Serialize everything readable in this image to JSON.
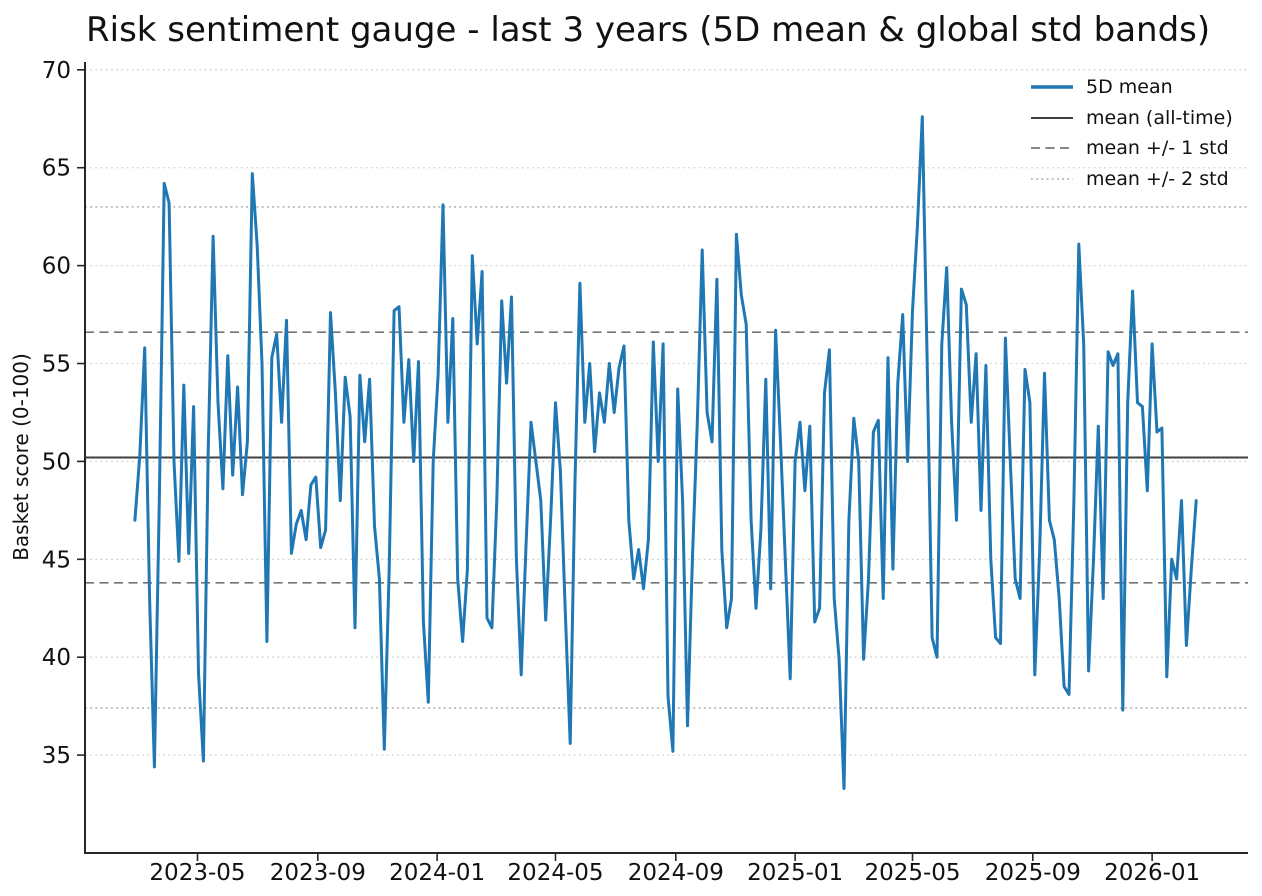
{
  "chart_data": {
    "type": "line",
    "title": "Risk sentiment gauge - last 3 years (5D mean & global std bands)",
    "xlabel": "",
    "ylabel": "Basket score (0-100)",
    "x_tick_labels": [
      "2023-05",
      "2023-09",
      "2024-01",
      "2024-05",
      "2024-09",
      "2025-01",
      "2025-05",
      "2025-09",
      "2026-01"
    ],
    "x_tick_days": [
      64,
      187,
      309,
      430,
      553,
      675,
      795,
      918,
      1040
    ],
    "y_ticks": [
      35,
      40,
      45,
      50,
      55,
      60,
      65,
      70
    ],
    "xlim_days": [
      -51,
      1138
    ],
    "ylim": [
      30,
      70.4
    ],
    "grid": {
      "axis": "y",
      "style": "dotted",
      "color": "#d2d2d2"
    },
    "axis_color": "#262626",
    "tick_label_color": "#111111",
    "series": [
      {
        "name": "5D mean",
        "color": "#1f77b4",
        "linewidth": 3,
        "x_start_day": 0,
        "x_step_days": 5,
        "values": [
          47.0,
          50.3,
          55.8,
          43.0,
          34.4,
          48.0,
          64.2,
          63.2,
          50.0,
          44.9,
          53.9,
          45.3,
          52.8,
          39.2,
          34.7,
          50.5,
          61.5,
          53.0,
          48.6,
          55.4,
          49.3,
          53.8,
          48.3,
          51.0,
          64.7,
          61.0,
          55.0,
          40.8,
          55.3,
          56.5,
          52.0,
          57.2,
          45.3,
          46.8,
          47.5,
          46.0,
          48.8,
          49.2,
          45.6,
          46.5,
          57.6,
          53.5,
          48.0,
          54.3,
          52.3,
          41.5,
          54.4,
          51.0,
          54.2,
          46.7,
          44.0,
          35.3,
          44.5,
          57.7,
          57.9,
          52.0,
          55.2,
          50.0,
          55.1,
          41.8,
          37.7,
          50.0,
          54.4,
          63.1,
          52.0,
          57.3,
          44.0,
          40.8,
          44.5,
          60.5,
          56.0,
          59.7,
          42.0,
          41.5,
          48.0,
          58.2,
          54.0,
          58.4,
          45.0,
          39.1,
          45.8,
          52.0,
          50.0,
          48.0,
          41.9,
          47.0,
          53.0,
          49.5,
          42.3,
          35.6,
          49.0,
          59.1,
          52.0,
          55.0,
          50.5,
          53.5,
          52.0,
          55.0,
          52.5,
          54.8,
          55.9,
          47.0,
          44.0,
          45.5,
          43.5,
          46.0,
          56.1,
          50.0,
          56.0,
          38.0,
          35.2,
          53.7,
          48.0,
          36.5,
          45.0,
          52.0,
          60.8,
          52.5,
          51.0,
          59.3,
          45.5,
          41.5,
          43.0,
          61.6,
          58.5,
          57.0,
          47.0,
          42.5,
          46.5,
          54.2,
          43.5,
          56.7,
          51.0,
          45.0,
          38.9,
          50.0,
          52.0,
          48.5,
          51.8,
          41.8,
          42.5,
          53.5,
          55.7,
          43.0,
          39.9,
          33.3,
          47.0,
          52.2,
          50.0,
          39.9,
          44.0,
          51.5,
          52.1,
          43.0,
          55.3,
          44.5,
          54.0,
          57.5,
          50.0,
          57.7,
          62.0,
          67.6,
          55.0,
          41.0,
          40.0,
          56.0,
          59.9,
          52.0,
          47.0,
          58.8,
          58.0,
          52.0,
          55.5,
          47.5,
          54.9,
          45.0,
          41.0,
          40.7,
          56.3,
          50.0,
          44.0,
          43.0,
          54.7,
          53.0,
          39.1,
          45.5,
          54.5,
          47.0,
          46.0,
          43.0,
          38.5,
          38.1,
          48.0,
          61.1,
          56.0,
          39.3,
          45.0,
          51.8,
          43.0,
          55.6,
          54.9,
          55.5,
          37.3,
          53.0,
          58.7,
          53.0,
          52.8,
          48.5,
          56.0,
          51.5,
          51.7,
          39.0,
          45.0,
          44.0,
          48.0,
          40.6,
          44.5,
          48.0
        ]
      }
    ],
    "reference_lines": [
      {
        "name": "mean (all-time)",
        "value": 50.2,
        "style": "solid",
        "color": "#3f3f3f",
        "linewidth": 2
      },
      {
        "name": "mean +1 std",
        "value": 56.6,
        "style": "dashed",
        "color": "#757575",
        "linewidth": 1.7
      },
      {
        "name": "mean -1 std",
        "value": 43.8,
        "style": "dashed",
        "color": "#757575",
        "linewidth": 1.7
      },
      {
        "name": "mean +2 std",
        "value": 63.0,
        "style": "dotted",
        "color": "#b3b3b3",
        "linewidth": 1.7
      },
      {
        "name": "mean -2 std",
        "value": 37.4,
        "style": "dotted",
        "color": "#b3b3b3",
        "linewidth": 1.7
      }
    ],
    "legend": {
      "position": "upper right",
      "frame": false,
      "items": [
        {
          "label": "5D mean",
          "color": "#1f77b4",
          "style": "solid",
          "linewidth": 3.5
        },
        {
          "label": "mean (all-time)",
          "color": "#3f3f3f",
          "style": "solid",
          "linewidth": 2
        },
        {
          "label": "mean +/- 1 std",
          "color": "#757575",
          "style": "dashed",
          "linewidth": 1.7
        },
        {
          "label": "mean +/- 2 std",
          "color": "#b3b3b3",
          "style": "dotted",
          "linewidth": 1.7
        }
      ]
    }
  }
}
